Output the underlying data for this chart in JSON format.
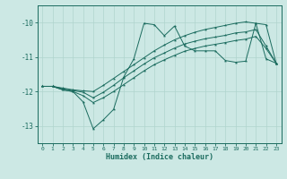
{
  "xlabel": "Humidex (Indice chaleur)",
  "background_color": "#cce8e4",
  "grid_color": "#b0d4ce",
  "line_color": "#1a6b5e",
  "xlim": [
    -0.5,
    23.5
  ],
  "ylim": [
    -13.5,
    -9.5
  ],
  "xticks": [
    0,
    1,
    2,
    3,
    4,
    5,
    6,
    7,
    8,
    9,
    10,
    11,
    12,
    13,
    14,
    15,
    16,
    17,
    18,
    19,
    20,
    21,
    22,
    23
  ],
  "yticks": [
    -13,
    -12,
    -11,
    -10
  ],
  "s1": [
    -11.85,
    -11.85,
    -11.9,
    -11.95,
    -11.98,
    -12.0,
    -11.82,
    -11.62,
    -11.42,
    -11.22,
    -11.02,
    -10.82,
    -10.65,
    -10.5,
    -10.38,
    -10.28,
    -10.2,
    -10.14,
    -10.08,
    -10.02,
    -9.98,
    -10.02,
    -11.05,
    -11.18
  ],
  "s2": [
    -11.85,
    -11.85,
    -11.95,
    -12.0,
    -12.3,
    -13.08,
    -12.82,
    -12.52,
    -11.58,
    -11.05,
    -10.02,
    -10.06,
    -10.38,
    -10.1,
    -10.68,
    -10.82,
    -10.82,
    -10.82,
    -11.1,
    -11.15,
    -11.12,
    -10.02,
    -10.06,
    -11.18
  ],
  "s3": [
    -11.85,
    -11.85,
    -11.92,
    -11.97,
    -12.02,
    -12.18,
    -12.02,
    -11.82,
    -11.6,
    -11.4,
    -11.2,
    -11.02,
    -10.88,
    -10.74,
    -10.62,
    -10.54,
    -10.47,
    -10.42,
    -10.37,
    -10.3,
    -10.27,
    -10.2,
    -10.68,
    -11.18
  ],
  "s4": [
    -11.85,
    -11.85,
    -11.95,
    -12.0,
    -12.12,
    -12.32,
    -12.18,
    -12.0,
    -11.8,
    -11.6,
    -11.4,
    -11.22,
    -11.08,
    -10.95,
    -10.83,
    -10.75,
    -10.68,
    -10.63,
    -10.58,
    -10.52,
    -10.48,
    -10.4,
    -10.75,
    -11.18
  ]
}
